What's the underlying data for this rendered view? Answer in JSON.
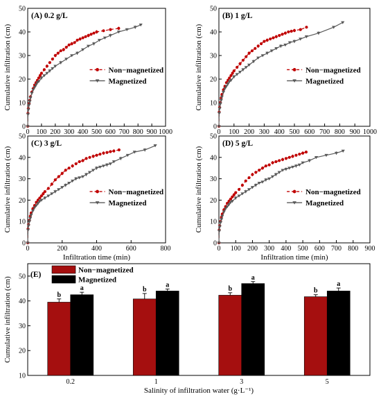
{
  "chart_data": [
    {
      "type": "line",
      "panel_title": "(A) 0.2 g/L",
      "xlabel": "",
      "ylabel": "Cumulative infiltration (cm)",
      "xlim": [
        0,
        1000
      ],
      "ylim": [
        0,
        50
      ],
      "xticks": [
        "0",
        "100",
        "200",
        "300",
        "400",
        "500",
        "600",
        "700",
        "800",
        "900",
        "1000"
      ],
      "yticks": [
        "0",
        "10",
        "20",
        "30",
        "40",
        "50"
      ],
      "legend_position": "center-right",
      "series": [
        {
          "name": "Non−magnetized",
          "color": "#c00000",
          "line": "dashed",
          "marker": "circle",
          "x": [
            0,
            2,
            5,
            10,
            15,
            20,
            30,
            40,
            50,
            60,
            70,
            80,
            90,
            100,
            120,
            140,
            160,
            180,
            200,
            220,
            240,
            260,
            280,
            300,
            320,
            340,
            360,
            380,
            400,
            420,
            440,
            460,
            480,
            500,
            550,
            600,
            660
          ],
          "y": [
            0,
            5.5,
            7.5,
            9.5,
            11,
            12.5,
            14.5,
            16,
            17.5,
            18.5,
            19.5,
            20.5,
            21.5,
            22.5,
            24,
            25.5,
            27,
            28.5,
            30,
            31,
            32,
            32.5,
            33.5,
            34.5,
            35,
            35.5,
            36.5,
            37,
            37.5,
            38,
            38.5,
            39,
            39.5,
            40,
            40.5,
            41,
            41.5
          ]
        },
        {
          "name": "Magnetized",
          "color": "#595959",
          "line": "solid",
          "marker": "triangle-down",
          "x": [
            0,
            2,
            5,
            10,
            15,
            20,
            30,
            40,
            50,
            60,
            70,
            80,
            100,
            120,
            140,
            160,
            180,
            200,
            240,
            280,
            320,
            360,
            400,
            440,
            480,
            520,
            560,
            600,
            660,
            720,
            780,
            820
          ],
          "y": [
            0,
            5,
            7,
            9,
            10.5,
            12,
            14,
            15.5,
            16.5,
            17.5,
            18.5,
            19,
            20.5,
            21.5,
            22.5,
            23.5,
            24.5,
            25.5,
            27,
            28.5,
            30,
            31,
            32.5,
            34,
            35,
            36.5,
            37.5,
            38.5,
            40,
            41,
            42,
            43
          ]
        }
      ]
    },
    {
      "type": "line",
      "panel_title": "(B) 1 g/L",
      "xlabel": "",
      "ylabel": "Cumulative infiltration (cm)",
      "xlim": [
        0,
        1000
      ],
      "ylim": [
        0,
        50
      ],
      "xticks": [
        "0",
        "100",
        "200",
        "300",
        "400",
        "500",
        "600",
        "700",
        "800",
        "900",
        "1000"
      ],
      "yticks": [
        "0",
        "10",
        "20",
        "30",
        "40",
        "50"
      ],
      "legend_position": "center-right",
      "series": [
        {
          "name": "Non−magnetized",
          "color": "#c00000",
          "line": "dashed",
          "marker": "circle",
          "x": [
            0,
            2,
            5,
            10,
            15,
            20,
            30,
            40,
            50,
            60,
            70,
            80,
            90,
            100,
            120,
            140,
            160,
            180,
            200,
            220,
            240,
            260,
            280,
            300,
            320,
            340,
            360,
            380,
            400,
            420,
            440,
            460,
            480,
            500,
            540,
            580
          ],
          "y": [
            0,
            6,
            8,
            10,
            12,
            13.5,
            15.5,
            17,
            18.5,
            19.5,
            20.5,
            21.5,
            22.5,
            23.5,
            25,
            26.5,
            28,
            29.5,
            31,
            32,
            33,
            34,
            35,
            36,
            36.5,
            37,
            37.5,
            38,
            38.5,
            39,
            39.5,
            40,
            40.3,
            40.6,
            41,
            42
          ]
        },
        {
          "name": "Magnetized",
          "color": "#595959",
          "line": "solid",
          "marker": "triangle-down",
          "x": [
            0,
            2,
            5,
            10,
            15,
            20,
            30,
            40,
            50,
            60,
            70,
            80,
            100,
            120,
            140,
            160,
            180,
            200,
            230,
            260,
            290,
            320,
            350,
            380,
            410,
            440,
            470,
            500,
            540,
            580,
            660,
            760,
            820
          ],
          "y": [
            0,
            5.5,
            7.5,
            9.5,
            11,
            12.5,
            14.5,
            16,
            17,
            18,
            19,
            19.5,
            21,
            22,
            23,
            24,
            25,
            26,
            27.5,
            29,
            30,
            31,
            32,
            33,
            34,
            34.5,
            35.5,
            36,
            37,
            38,
            39.5,
            42,
            44
          ]
        }
      ]
    },
    {
      "type": "line",
      "panel_title": "(C) 3 g/L",
      "xlabel": "Infiltration time (min)",
      "ylabel": "Cumulative infiltration (cm)",
      "xlim": [
        0,
        800
      ],
      "ylim": [
        0,
        50
      ],
      "xticks": [
        "0",
        "200",
        "400",
        "600",
        "800"
      ],
      "yticks": [
        "0",
        "10",
        "20",
        "30",
        "40",
        "50"
      ],
      "legend_position": "center-right",
      "series": [
        {
          "name": "Non−magnetized",
          "color": "#c00000",
          "line": "dashed",
          "marker": "circle",
          "x": [
            0,
            2,
            5,
            10,
            15,
            20,
            30,
            40,
            50,
            60,
            70,
            80,
            90,
            100,
            120,
            140,
            160,
            180,
            200,
            220,
            240,
            260,
            280,
            300,
            320,
            340,
            360,
            380,
            400,
            420,
            440,
            460,
            480,
            500,
            530
          ],
          "y": [
            0,
            6.5,
            8.5,
            10.5,
            12.5,
            14,
            16,
            17.5,
            19,
            20,
            21,
            22,
            23,
            24,
            25.5,
            27.5,
            29.5,
            31,
            32.5,
            34,
            35,
            36,
            37,
            38,
            38.5,
            39.5,
            40,
            40.5,
            41,
            41.5,
            42,
            42.3,
            42.7,
            43,
            43.5
          ]
        },
        {
          "name": "Magnetized",
          "color": "#595959",
          "line": "solid",
          "marker": "triangle-down",
          "x": [
            0,
            2,
            5,
            10,
            15,
            20,
            30,
            40,
            50,
            60,
            70,
            80,
            100,
            120,
            140,
            160,
            180,
            200,
            220,
            240,
            260,
            280,
            300,
            320,
            340,
            360,
            380,
            400,
            420,
            440,
            460,
            480,
            500,
            540,
            580,
            620,
            680,
            740
          ],
          "y": [
            0,
            6,
            8,
            10,
            11.5,
            13,
            15,
            16.5,
            17.5,
            18.5,
            19.5,
            20,
            21,
            22,
            23,
            24,
            25,
            26,
            27,
            28,
            29,
            30,
            30.5,
            31,
            32,
            33,
            34,
            35,
            35.5,
            36,
            36.5,
            37,
            38,
            39.5,
            41,
            42.5,
            43.5,
            45.5
          ]
        }
      ]
    },
    {
      "type": "line",
      "panel_title": "(D) 5 g/L",
      "xlabel": "Infiltration time (min)",
      "ylabel": "Cumulative infiltration (cm)",
      "xlim": [
        0,
        900
      ],
      "ylim": [
        0,
        50
      ],
      "xticks": [
        "0",
        "100",
        "200",
        "300",
        "400",
        "500",
        "600",
        "700",
        "800",
        "900"
      ],
      "yticks": [
        "0",
        "10",
        "20",
        "30",
        "40",
        "50"
      ],
      "legend_position": "center-right",
      "series": [
        {
          "name": "Non−magnetized",
          "color": "#c00000",
          "line": "dashed",
          "marker": "circle",
          "x": [
            0,
            2,
            5,
            10,
            15,
            20,
            30,
            40,
            50,
            60,
            70,
            80,
            90,
            100,
            120,
            140,
            160,
            180,
            200,
            220,
            240,
            260,
            280,
            300,
            320,
            340,
            360,
            380,
            400,
            420,
            440,
            460,
            480,
            500,
            520
          ],
          "y": [
            0,
            6,
            8,
            10,
            12,
            13.5,
            15.5,
            17,
            18.5,
            19.5,
            20.5,
            21.5,
            22.5,
            23.5,
            25,
            27,
            29,
            30.5,
            32,
            33,
            34,
            35,
            36,
            36.5,
            37.5,
            38,
            38.5,
            39,
            39.5,
            40,
            40.5,
            41,
            41.5,
            42,
            42.5
          ]
        },
        {
          "name": "Magnetized",
          "color": "#595959",
          "line": "solid",
          "marker": "triangle-down",
          "x": [
            0,
            2,
            5,
            10,
            15,
            20,
            30,
            40,
            50,
            60,
            70,
            80,
            100,
            120,
            140,
            160,
            180,
            200,
            220,
            240,
            260,
            280,
            300,
            320,
            340,
            360,
            380,
            400,
            420,
            440,
            460,
            480,
            500,
            540,
            580,
            640,
            700,
            740
          ],
          "y": [
            0,
            5.5,
            7.5,
            9.5,
            11,
            12.5,
            14.5,
            16,
            17,
            18,
            19,
            19.5,
            21,
            22,
            23,
            24,
            25,
            26,
            27,
            28,
            28.5,
            29.5,
            30,
            31,
            32,
            33,
            34,
            34.5,
            35,
            35.5,
            36,
            36.5,
            37.5,
            38.5,
            40,
            41,
            42,
            43
          ]
        }
      ]
    },
    {
      "type": "bar",
      "panel_title": "(E)",
      "categories": [
        "0.2",
        "1",
        "3",
        "5"
      ],
      "xlabel": "Salinity of infiltration water (g·L⁻¹)",
      "ylabel": "Cumulative infiltration (cm)",
      "ylim": [
        10,
        55
      ],
      "yticks": [
        "10",
        "20",
        "30",
        "40",
        "50"
      ],
      "legend_position": "top-left",
      "series": [
        {
          "name": "Non−magnetized",
          "color": "#a50f0f",
          "values": [
            39.5,
            40.8,
            42.3,
            41.7
          ],
          "errors": [
            1.3,
            2.2,
            1.0,
            0.8
          ],
          "letters": [
            "b",
            "b",
            "b",
            "b"
          ]
        },
        {
          "name": "Magnetized",
          "color": "#000000",
          "values": [
            42.5,
            44.0,
            47.0,
            44.0
          ],
          "errors": [
            1.0,
            0.8,
            0.8,
            1.2
          ],
          "letters": [
            "a",
            "a",
            "a",
            "a"
          ]
        }
      ]
    }
  ]
}
